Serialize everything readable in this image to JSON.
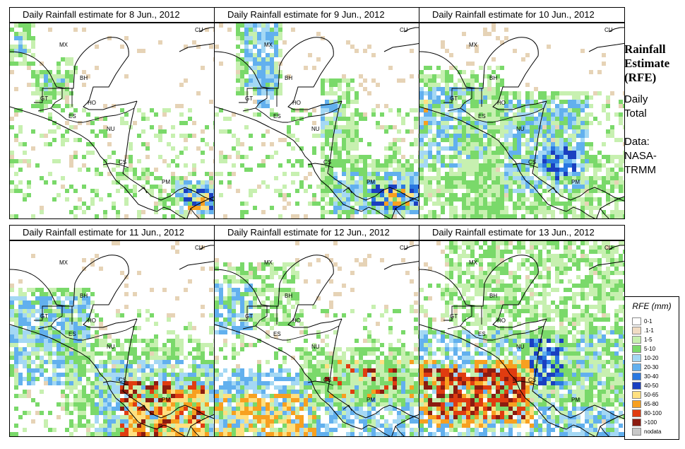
{
  "panels": [
    {
      "title": "Daily Rainfall estimate for  8 Jun., 2012",
      "labels": [
        "CU",
        "MX",
        "BH",
        "GT",
        "HO",
        "ES",
        "NU",
        "CS",
        "PM"
      ],
      "rain": [
        {
          "c": "green",
          "k": "w",
          "r": [
            0,
            0,
            35,
            60
          ]
        },
        {
          "c": "blue",
          "k": "w",
          "r": [
            6,
            20,
            22,
            38
          ]
        },
        {
          "c": "blue",
          "k": "w",
          "r": [
            44,
            76,
            76,
            108
          ]
        },
        {
          "c": "green",
          "k": "w",
          "r": [
            34,
            70,
            88,
            120
          ]
        },
        {
          "c": "green",
          "k": "w",
          "r": [
            70,
            52,
            96,
            72
          ]
        },
        {
          "c": "green",
          "k": "w",
          "r": [
            150,
            204,
            200,
            240
          ]
        },
        {
          "c": "green",
          "k": "w",
          "r": [
            214,
            222,
            292,
            260
          ]
        },
        {
          "c": "blue",
          "k": "w",
          "r": [
            236,
            224,
            292,
            268
          ]
        },
        {
          "c": "darkblue",
          "k": "w",
          "r": [
            250,
            236,
            284,
            260
          ]
        },
        {
          "c": "orange",
          "k": "w",
          "r": [
            256,
            242,
            280,
            260
          ]
        },
        {
          "c": "green",
          "k": "s",
          "r": [
            0,
            120,
            292,
            278
          ]
        }
      ]
    },
    {
      "title": "Daily Rainfall estimate for  9 Jun., 2012",
      "labels": [
        "CU",
        "MX",
        "BH",
        "GT",
        "HO",
        "ES",
        "NU",
        "CS",
        "PM"
      ],
      "rain": [
        {
          "c": "green",
          "k": "w",
          "r": [
            30,
            0,
            92,
            100
          ]
        },
        {
          "c": "blue",
          "k": "w",
          "r": [
            44,
            0,
            86,
            90
          ]
        },
        {
          "c": "blue",
          "k": "w",
          "r": [
            60,
            60,
            82,
            120
          ]
        },
        {
          "c": "green",
          "k": "w",
          "r": [
            150,
            80,
            200,
            200
          ]
        },
        {
          "c": "blue",
          "k": "w",
          "r": [
            152,
            110,
            178,
            160
          ]
        },
        {
          "c": "green",
          "k": "w",
          "r": [
            150,
            190,
            292,
            270
          ]
        },
        {
          "c": "blue",
          "k": "w",
          "r": [
            170,
            210,
            292,
            268
          ]
        },
        {
          "c": "darkblue",
          "k": "w",
          "r": [
            226,
            230,
            290,
            262
          ]
        },
        {
          "c": "orange",
          "k": "w",
          "r": [
            240,
            238,
            280,
            256
          ]
        },
        {
          "c": "green",
          "k": "s",
          "r": [
            0,
            120,
            292,
            278
          ]
        }
      ]
    },
    {
      "title": "Daily Rainfall estimate for  10 Jun., 2012",
      "labels": [
        "CU",
        "MX",
        "BH",
        "GT",
        "HO",
        "ES",
        "NU",
        "CS",
        "PM"
      ],
      "rain": [
        {
          "c": "green",
          "k": "w",
          "r": [
            0,
            60,
            120,
            278
          ]
        },
        {
          "c": "blue",
          "k": "w",
          "r": [
            0,
            94,
            96,
            200
          ]
        },
        {
          "c": "orange",
          "k": "w",
          "r": [
            0,
            110,
            12,
            150
          ]
        },
        {
          "c": "green",
          "k": "w",
          "r": [
            60,
            100,
            240,
            278
          ]
        },
        {
          "c": "blue",
          "k": "w",
          "r": [
            120,
            110,
            240,
            240
          ]
        },
        {
          "c": "darkblue",
          "k": "w",
          "r": [
            176,
            176,
            220,
            220
          ]
        },
        {
          "c": "green",
          "k": "w",
          "r": [
            230,
            190,
            292,
            278
          ]
        },
        {
          "c": "green",
          "k": "s",
          "r": [
            0,
            100,
            292,
            278
          ]
        }
      ]
    },
    {
      "title": "Daily Rainfall estimate for  11 Jun., 2012",
      "labels": [
        "CU",
        "MX",
        "BH",
        "GT",
        "HO",
        "ES",
        "NU",
        "CS",
        "PM"
      ],
      "rain": [
        {
          "c": "green",
          "k": "w",
          "r": [
            0,
            70,
            120,
            180
          ]
        },
        {
          "c": "blue",
          "k": "w",
          "r": [
            0,
            80,
            110,
            200
          ]
        },
        {
          "c": "green",
          "k": "w",
          "r": [
            80,
            140,
            292,
            278
          ]
        },
        {
          "c": "blue",
          "k": "w",
          "r": [
            120,
            170,
            292,
            278
          ]
        },
        {
          "c": "red",
          "k": "w",
          "r": [
            160,
            200,
            276,
            278
          ]
        },
        {
          "c": "orange",
          "k": "w",
          "r": [
            170,
            210,
            280,
            278
          ]
        },
        {
          "c": "green",
          "k": "s",
          "r": [
            0,
            100,
            292,
            278
          ]
        }
      ]
    },
    {
      "title": "Daily Rainfall estimate for  12 Jun., 2012",
      "labels": [
        "CU",
        "MX",
        "BH",
        "GT",
        "HO",
        "ES",
        "NU",
        "CS",
        "PM"
      ],
      "rain": [
        {
          "c": "green",
          "k": "w",
          "r": [
            0,
            30,
            120,
            120
          ]
        },
        {
          "c": "blue",
          "k": "w",
          "r": [
            0,
            60,
            50,
            130
          ]
        },
        {
          "c": "blue",
          "k": "w",
          "r": [
            0,
            180,
            292,
            278
          ]
        },
        {
          "c": "orange",
          "k": "w",
          "r": [
            0,
            220,
            140,
            272
          ]
        },
        {
          "c": "orange",
          "k": "w",
          "r": [
            150,
            170,
            280,
            220
          ]
        },
        {
          "c": "red",
          "k": "w",
          "r": [
            160,
            176,
            270,
            212
          ]
        },
        {
          "c": "green",
          "k": "w",
          "r": [
            120,
            150,
            292,
            230
          ]
        },
        {
          "c": "green",
          "k": "s",
          "r": [
            0,
            90,
            292,
            278
          ]
        }
      ]
    },
    {
      "title": "Daily Rainfall estimate for  13 Jun., 2012",
      "labels": [
        "CU",
        "MX",
        "BH",
        "GT",
        "HO",
        "ES",
        "NU",
        "CS",
        "PM"
      ],
      "rain": [
        {
          "c": "green",
          "k": "w",
          "r": [
            40,
            0,
            292,
            110
          ]
        },
        {
          "c": "blue",
          "k": "w",
          "r": [
            0,
            130,
            292,
            278
          ]
        },
        {
          "c": "green",
          "k": "w",
          "r": [
            100,
            120,
            292,
            230
          ]
        },
        {
          "c": "orange",
          "k": "w",
          "r": [
            0,
            170,
            160,
            262
          ]
        },
        {
          "c": "red",
          "k": "w",
          "r": [
            10,
            180,
            150,
            250
          ]
        },
        {
          "c": "darkblue",
          "k": "w",
          "r": [
            156,
            140,
            200,
            200
          ]
        },
        {
          "c": "green",
          "k": "s",
          "r": [
            0,
            60,
            292,
            278
          ]
        }
      ]
    }
  ],
  "side": {
    "title_lines": [
      "Rainfall",
      "Estimate",
      "(RFE)"
    ],
    "daily_lines": [
      "Daily",
      "Total"
    ],
    "data_lines": [
      "Data:",
      "NASA-",
      "TRMM"
    ]
  },
  "legend": {
    "title": "RFE (mm)",
    "items": [
      {
        "label": "0-1",
        "color": "#ffffff"
      },
      {
        "label": ".1-1",
        "color": "#f0dcc4"
      },
      {
        "label": "1-5",
        "color": "#c7f0b0"
      },
      {
        "label": "5-10",
        "color": "#7ad96a"
      },
      {
        "label": "10-20",
        "color": "#a4d8f4"
      },
      {
        "label": "20-30",
        "color": "#62b0ee"
      },
      {
        "label": "30-40",
        "color": "#2a78e0"
      },
      {
        "label": "40-50",
        "color": "#1a3fc0"
      },
      {
        "label": "50-65",
        "color": "#ffe080"
      },
      {
        "label": "65-80",
        "color": "#f7a020"
      },
      {
        "label": "80-100",
        "color": "#e03c10"
      },
      {
        "label": ">100",
        "color": "#8c1c10"
      },
      {
        "label": "nodata",
        "color": "#c8c8c8"
      }
    ]
  }
}
